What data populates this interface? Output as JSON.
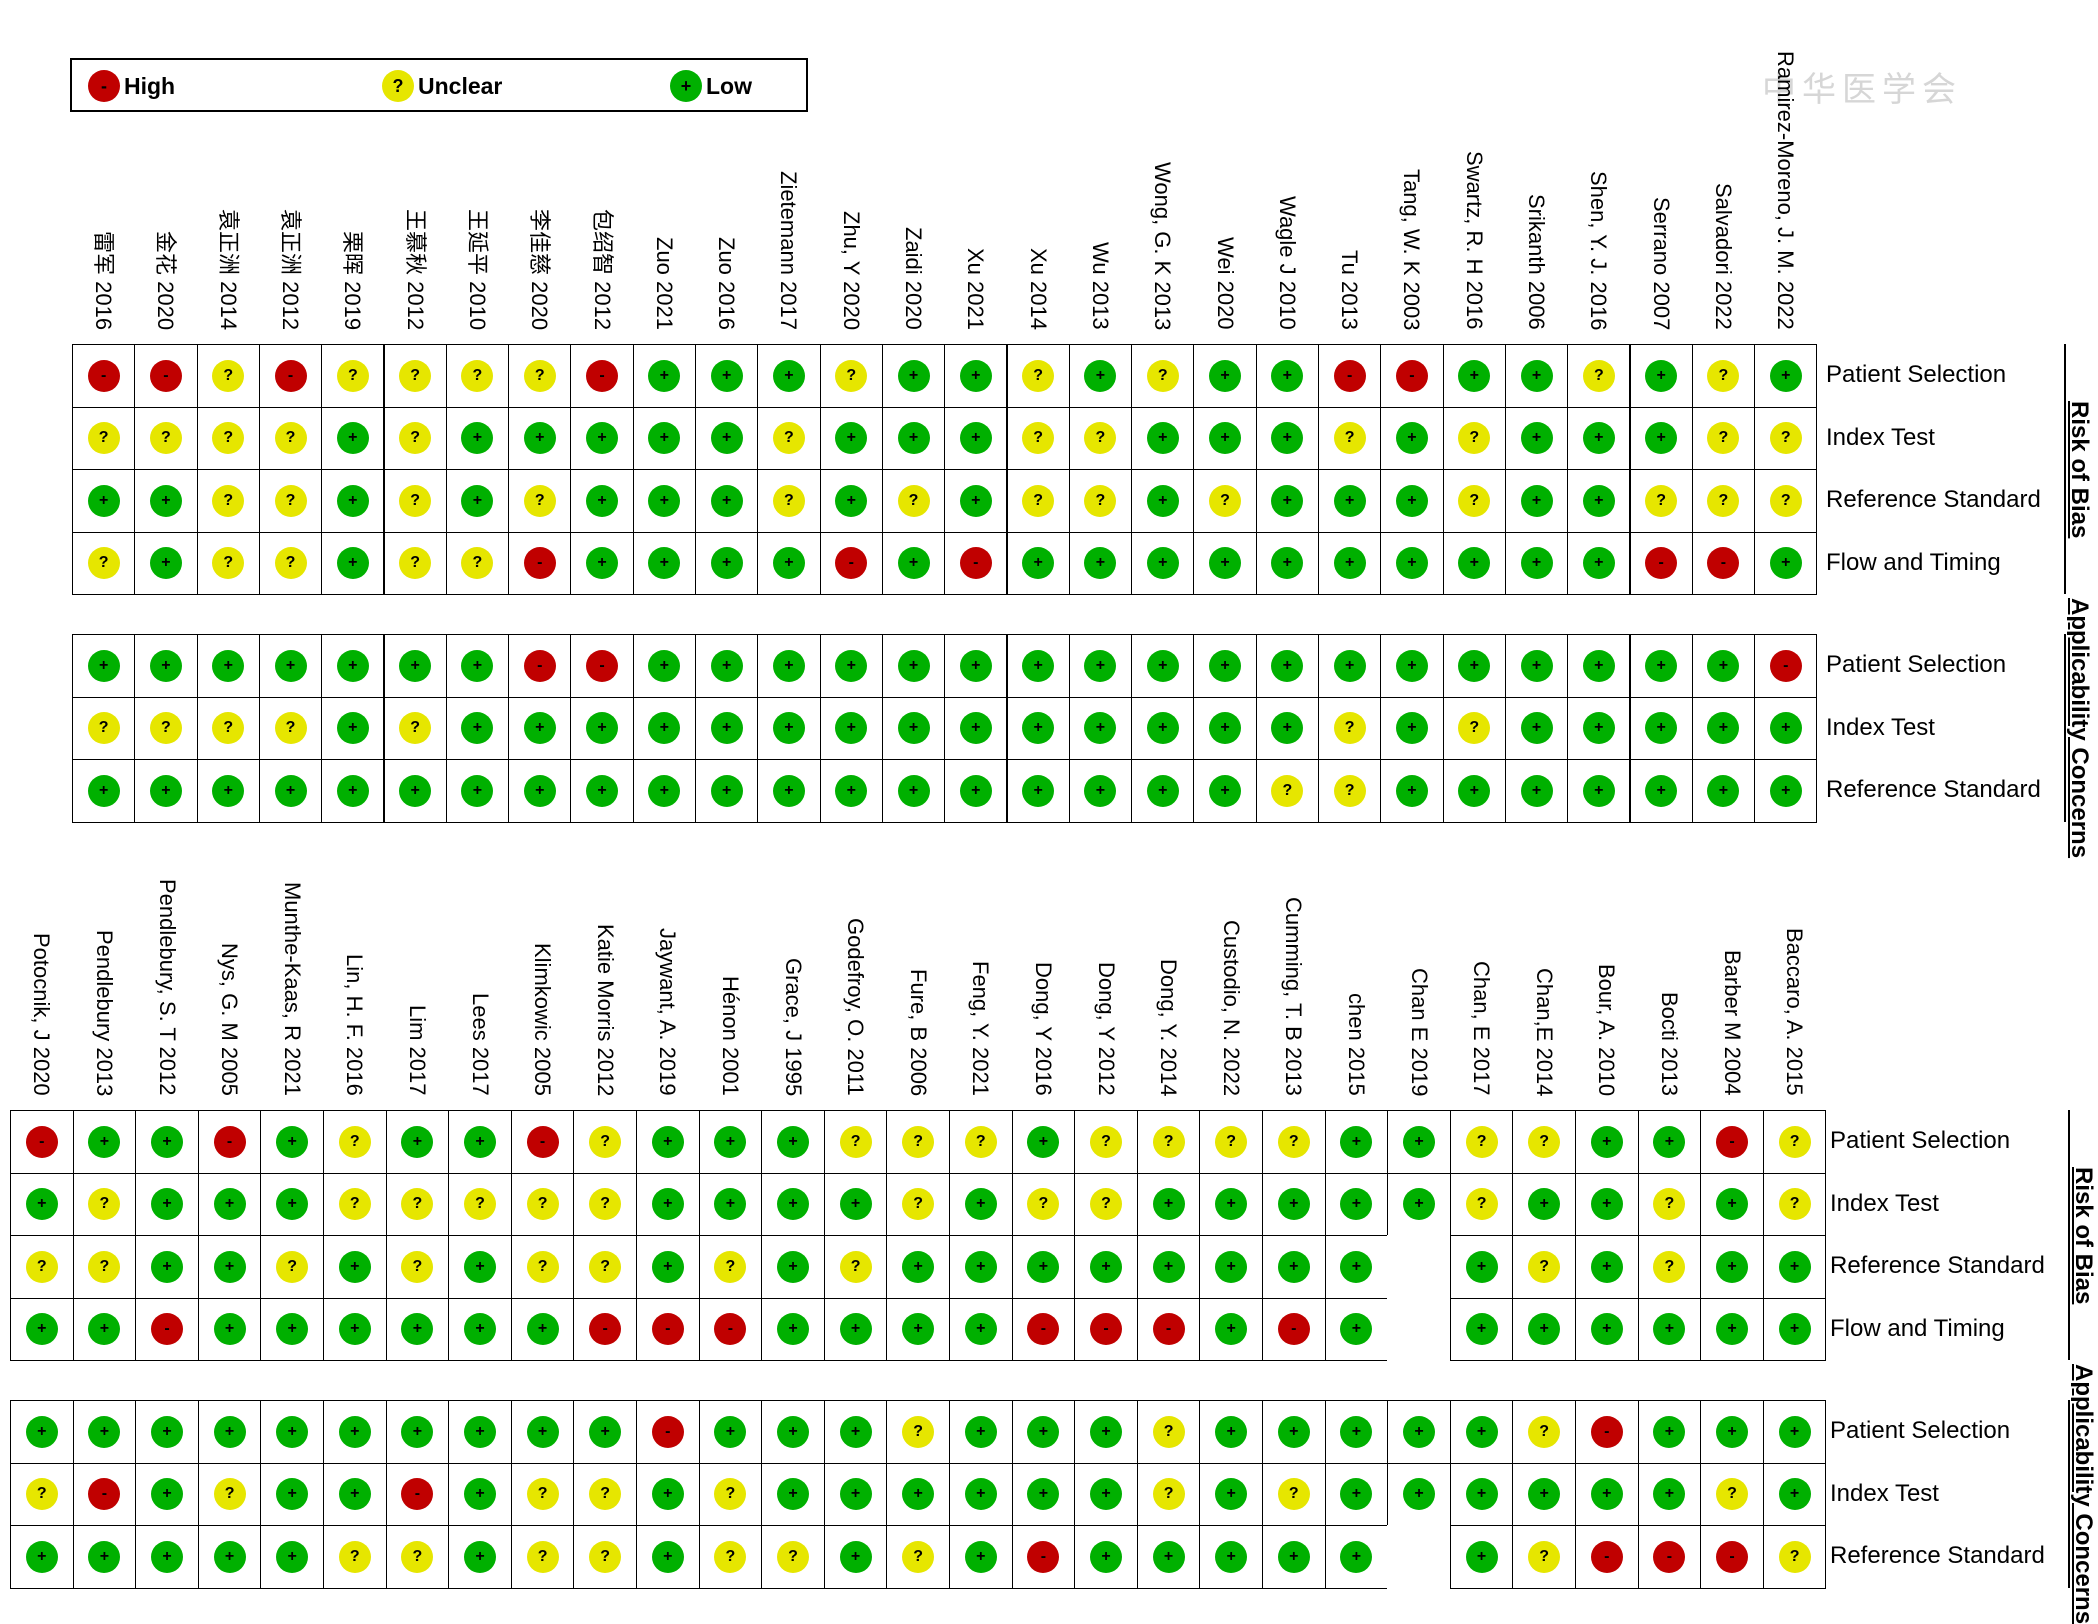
{
  "legend": {
    "high": {
      "label": "High",
      "color": "#c00000",
      "symbol": "-"
    },
    "unclear": {
      "label": "Unclear",
      "color": "#e6e600",
      "symbol": "?"
    },
    "low": {
      "label": "Low",
      "color": "#00b000",
      "symbol": "+"
    }
  },
  "watermark": "中华医学会",
  "chart_data": [
    {
      "type": "table",
      "studies": [
        "雷军 2016",
        "金花 2020",
        "袁正洲 2014",
        "袁正洲 2012",
        "栗晖 2019",
        "王慕秋 2012",
        "王延平 2010",
        "李佳慈 2020",
        "包绍智 2012",
        "Zuo 2021",
        "Zuo 2016",
        "Zietemann 2017",
        "Zhu, Y 2020",
        "Zaidi 2020",
        "Xu 2021",
        "Xu 2014",
        "Wu 2013",
        "Wong, G. K 2013",
        "Wei 2020",
        "Wagle J 2010",
        "Tu 2013",
        "Tang, W. K 2003",
        "Swartz, R. H 2016",
        "Srikanth 2006",
        "Shen, Y. J. 2016",
        "Serrano 2007",
        "Salvadori 2022",
        "Ramirez-Moreno, J. M. 2022"
      ],
      "groups": [
        {
          "name": "Risk of Bias",
          "domains": [
            {
              "label": "Patient Selection",
              "values": "HHUHUUUUHLLLULLULULLHHLLULUL"
            },
            {
              "label": "Index Test",
              "values": "UUUULULLLLLULLLUULLLULULLLUU"
            },
            {
              "label": "Reference Standard",
              "values": "LLUULULULLLULULUULULLLULLUUU"
            },
            {
              "label": "Flow and Timing",
              "values": "ULUULUUHLLLLHLHLLLLLLLLLLHHL"
            }
          ]
        },
        {
          "name": "Applicability Concerns",
          "domains": [
            {
              "label": "Patient Selection",
              "values": "LLLLLLLHHLLLLLLLLLLLLLLLLLLH"
            },
            {
              "label": "Index Test",
              "values": "UUUULULLLLLLLLLLLLLLULULLLLL"
            },
            {
              "label": "Reference Standard",
              "values": "LLLLLLLLLLLLLLLLLLLUULLLLLLL"
            }
          ]
        }
      ]
    },
    {
      "type": "table",
      "studies": [
        "Potocnik, J 2020",
        "Pendlebury 2013",
        "Pendlebury, S. T 2012",
        "Nys, G. M 2005",
        "Munthe-Kaas, R 2021",
        "Lin, H. F. 2016",
        "Lim 2017",
        "Lees 2017",
        "Klimkowic 2005",
        "Katie Morris 2012",
        "Jaywant, A. 2019",
        "Hénon 2001",
        "Grace, J 1995",
        "Godefroy, O. 2011",
        "Fure, B 2006",
        "Feng, Y. 2021",
        "Dong, Y 2016",
        "Dong, Y 2012",
        "Dong, Y. 2014",
        "Custodio, N. 2022",
        "Cumming, T. B 2013",
        "chen 2015",
        "Chan E 2019",
        "Chan, E 2017",
        "Chan,E 2014",
        "Bour, A. 2010",
        "Bocti 2013",
        "Barber M 2004",
        "Baccaro, A. 2015"
      ],
      "groups": [
        {
          "name": "Risk of Bias",
          "domains": [
            {
              "label": "Patient Selection",
              "values": "HLLHLULLHULLLUUULUUUULLUULLHU"
            },
            {
              "label": "Index Test",
              "values": "LULLLUUUUULLLLULUULLLLLULLULU"
            },
            {
              "label": "Reference Standard",
              "values": "UULLULULUULULULLLLLLLL-LULULL"
            },
            {
              "label": "Flow and Timing",
              "values": "LLHLLLLLLHHHLLLLHHHLHL-LLLLLL"
            }
          ]
        },
        {
          "name": "Applicability Concerns",
          "domains": [
            {
              "label": "Patient Selection",
              "values": "LLLLLLLLLLHLLLULLLULLLLLUHLLL"
            },
            {
              "label": "Index Test",
              "values": "UHLULLHLUULULLLLLLULULLLLLLUL"
            },
            {
              "label": "Reference Standard",
              "values": "LLLLLUULUULUULULHLLLLL-LUHHHU"
            }
          ]
        }
      ]
    }
  ]
}
